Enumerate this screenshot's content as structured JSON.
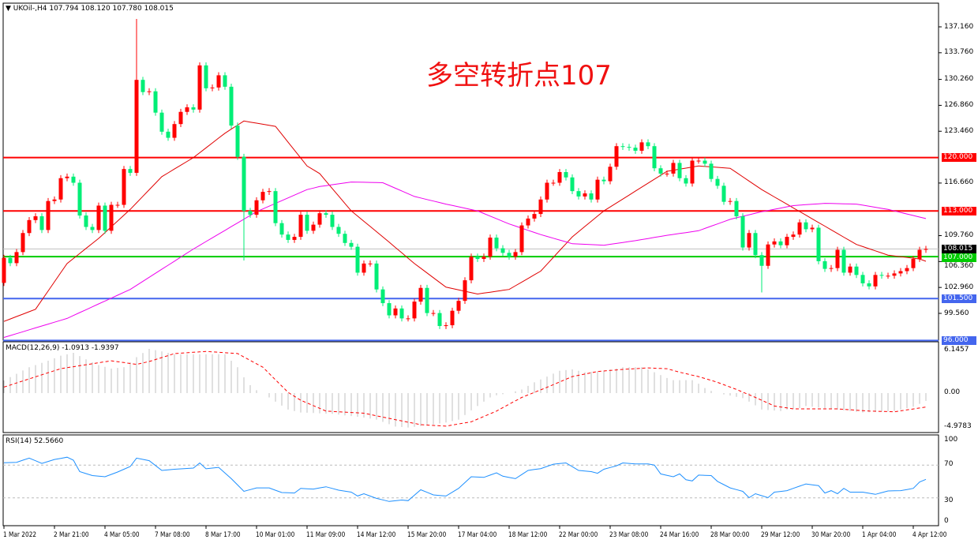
{
  "header": {
    "symbol": "UKOil-,H4",
    "open": "107.794",
    "high": "108.120",
    "low": "107.780",
    "close": "108.015"
  },
  "annotation": "多空转折点107",
  "colors": {
    "up": "#ff0000",
    "down": "#00ee76",
    "ma_fast": "#e00000",
    "ma_slow": "#ee00ee",
    "rsi": "#1e90ff",
    "macd_hist": "#c0c0c0",
    "macd_signal": "#ff0000"
  },
  "price_axis": [
    "137.160",
    "133.760",
    "130.260",
    "126.860",
    "123.460",
    "116.660",
    "109.760",
    "106.360",
    "102.960",
    "99.560"
  ],
  "levels": [
    {
      "label": "120.000",
      "price": 120.0,
      "color": "#ff0000"
    },
    {
      "label": "113.000",
      "price": 113.0,
      "color": "#ff0000"
    },
    {
      "label": "108.015",
      "price": 108.015,
      "color": "#c0c0c0",
      "tag_color": "#000000"
    },
    {
      "label": "107.000",
      "price": 107.0,
      "color": "#00cc00"
    },
    {
      "label": "101.500",
      "price": 101.5,
      "color": "#4466ee"
    },
    {
      "label": "96.000",
      "price": 96.0,
      "color": "#4466ee"
    }
  ],
  "time_axis": [
    "1 Mar 2022",
    "2 Mar 21:00",
    "4 Mar 05:00",
    "7 Mar 08:00",
    "8 Mar 17:00",
    "10 Mar 01:00",
    "11 Mar 09:00",
    "14 Mar 12:00",
    "15 Mar 20:00",
    "17 Mar 04:00",
    "18 Mar 12:00",
    "22 Mar 00:00",
    "23 Mar 08:00",
    "24 Mar 16:00",
    "28 Mar 00:00",
    "29 Mar 12:00",
    "30 Mar 20:00",
    "1 Apr 04:00",
    "4 Apr 12:00"
  ],
  "macd": {
    "title": "MACD(12,26,9) -1.0913 -1.9397",
    "axis": [
      "6.1457",
      "0.00",
      "-4.9783"
    ]
  },
  "rsi": {
    "title": "RSI(14) 52.5660",
    "axis": [
      "100",
      "70",
      "30",
      "0"
    ]
  },
  "chart_data": {
    "type": "candlestick",
    "first_open": 103.56,
    "closes": [
      106.84,
      106.15,
      107.6,
      110.1,
      111.8,
      112.3,
      110.5,
      114.3,
      114.5,
      117.3,
      117.5,
      116.7,
      112.4,
      110.9,
      110.5,
      113.7,
      110.4,
      113.8,
      113.8,
      118.5,
      118.0,
      130.2,
      128.6,
      128.7,
      125.9,
      123.4,
      122.6,
      124.4,
      126.0,
      126.6,
      126.3,
      132.1,
      129.1,
      129.2,
      130.8,
      129.3,
      124.2,
      120.1,
      113.0,
      112.5,
      114.4,
      115.5,
      115.6,
      111.4,
      109.9,
      109.2,
      109.6,
      112.5,
      110.4,
      111.2,
      112.7,
      112.5,
      110.9,
      110.0,
      108.8,
      108.3,
      104.9,
      106.1,
      106.1,
      102.7,
      100.9,
      99.3,
      100.2,
      98.9,
      98.9,
      101.1,
      102.9,
      99.6,
      99.6,
      97.9,
      98.0,
      99.9,
      101.2,
      103.9,
      107.0,
      106.7,
      107.0,
      109.5,
      108.1,
      107.5,
      107.0,
      107.6,
      111.1,
      112.0,
      112.6,
      114.5,
      116.7,
      116.7,
      118.1,
      117.4,
      115.6,
      114.9,
      115.3,
      114.5,
      117.1,
      116.9,
      118.8,
      121.5,
      121.4,
      121.3,
      120.9,
      122.0,
      121.5,
      118.6,
      117.9,
      117.9,
      119.3,
      117.3,
      116.6,
      119.6,
      119.6,
      119.2,
      117.2,
      116.3,
      114.2,
      114.3,
      112.3,
      108.2,
      110.1,
      107.2,
      105.8,
      108.6,
      109.0,
      108.5,
      109.6,
      109.9,
      111.5,
      110.6,
      110.8,
      106.4,
      105.4,
      105.5,
      107.9,
      104.9,
      105.7,
      104.6,
      103.5,
      103.1,
      104.6,
      104.5,
      104.5,
      104.8,
      105.1,
      105.5,
      106.7,
      107.9,
      108.015
    ],
    "notable_wicks": [
      {
        "index": 22,
        "high": 138.2
      },
      {
        "index": 39,
        "low": 106.5
      },
      {
        "index": 121,
        "low": 102.3
      }
    ],
    "y_range": [
      95.6,
      138.6
    ],
    "ma_fast": [
      [
        1,
        98.5
      ],
      [
        6,
        100.1
      ],
      [
        11,
        106.1
      ],
      [
        16,
        109.4
      ],
      [
        21,
        113.2
      ],
      [
        26,
        117.5
      ],
      [
        31,
        120.0
      ],
      [
        36,
        123.2
      ],
      [
        39,
        124.8
      ],
      [
        44,
        124.1
      ],
      [
        49,
        118.9
      ],
      [
        51,
        117.9
      ],
      [
        56,
        113.0
      ],
      [
        61,
        109.6
      ],
      [
        66,
        106.1
      ],
      [
        71,
        103.0
      ],
      [
        76,
        102.1
      ],
      [
        81,
        102.7
      ],
      [
        86,
        105.1
      ],
      [
        91,
        109.6
      ],
      [
        96,
        113.0
      ],
      [
        101,
        115.6
      ],
      [
        106,
        118.2
      ],
      [
        111,
        118.9
      ],
      [
        116,
        118.6
      ],
      [
        121,
        115.8
      ],
      [
        126,
        113.4
      ],
      [
        131,
        111.0
      ],
      [
        136,
        108.6
      ],
      [
        141,
        107.2
      ],
      [
        146,
        106.7
      ],
      [
        147,
        106.4
      ]
    ],
    "ma_slow": [
      [
        1,
        96.4
      ],
      [
        11,
        98.9
      ],
      [
        21,
        102.7
      ],
      [
        31,
        108.0
      ],
      [
        41,
        112.9
      ],
      [
        49,
        115.8
      ],
      [
        51,
        116.2
      ],
      [
        56,
        116.8
      ],
      [
        61,
        116.7
      ],
      [
        66,
        114.9
      ],
      [
        71,
        113.9
      ],
      [
        76,
        113.0
      ],
      [
        81,
        111.3
      ],
      [
        86,
        109.9
      ],
      [
        91,
        108.7
      ],
      [
        96,
        108.5
      ],
      [
        101,
        109.1
      ],
      [
        106,
        109.8
      ],
      [
        111,
        110.4
      ],
      [
        116,
        111.9
      ],
      [
        121,
        112.9
      ],
      [
        126,
        113.7
      ],
      [
        131,
        114.0
      ],
      [
        136,
        113.9
      ],
      [
        141,
        113.2
      ],
      [
        146,
        112.2
      ],
      [
        147,
        112.0
      ]
    ],
    "macd_hist": [
      [
        1,
        1.76
      ],
      [
        5,
        3.6
      ],
      [
        8,
        4.5
      ],
      [
        10,
        5.2
      ],
      [
        12,
        5.6
      ],
      [
        14,
        4.7
      ],
      [
        16,
        3.9
      ],
      [
        18,
        3.4
      ],
      [
        20,
        3.6
      ],
      [
        22,
        5.0
      ],
      [
        24,
        6.15
      ],
      [
        26,
        5.8
      ],
      [
        28,
        5.4
      ],
      [
        36,
        5.4
      ],
      [
        38,
        3.6
      ],
      [
        39,
        2.2
      ],
      [
        40,
        1.1
      ],
      [
        41,
        0.4
      ],
      [
        42,
        0
      ],
      [
        44,
        -1.2
      ],
      [
        46,
        -2.3
      ],
      [
        48,
        -2.7
      ],
      [
        53,
        -2.9
      ],
      [
        58,
        -3.4
      ],
      [
        60,
        -3.7
      ],
      [
        63,
        -4.65
      ],
      [
        65,
        -4.8
      ],
      [
        68,
        -4.5
      ],
      [
        71,
        -4.1
      ],
      [
        73,
        -3.7
      ],
      [
        75,
        -2.4
      ],
      [
        76,
        -1.8
      ],
      [
        77,
        -1.2
      ],
      [
        78,
        -0.6
      ],
      [
        79,
        -0.3
      ],
      [
        81,
        0
      ],
      [
        83,
        0.5
      ],
      [
        84,
        1.0
      ],
      [
        85,
        1.5
      ],
      [
        86,
        1.9
      ],
      [
        87,
        2.3
      ],
      [
        88,
        2.7
      ],
      [
        89,
        3.1
      ],
      [
        91,
        3.3
      ],
      [
        93,
        2.9
      ],
      [
        96,
        3.1
      ],
      [
        99,
        3.6
      ],
      [
        102,
        3.6
      ],
      [
        103,
        3.3
      ],
      [
        104,
        2.9
      ],
      [
        105,
        2.5
      ],
      [
        106,
        2.1
      ],
      [
        107,
        1.8
      ],
      [
        110,
        1.8
      ],
      [
        111,
        1.3
      ],
      [
        112,
        0.7
      ],
      [
        113,
        0.3
      ],
      [
        114,
        0
      ],
      [
        118,
        -0.7
      ],
      [
        119,
        -1.2
      ],
      [
        120,
        -1.7
      ],
      [
        121,
        -2.3
      ],
      [
        124,
        -2.5
      ],
      [
        125,
        -2.3
      ],
      [
        127,
        -2.1
      ],
      [
        128,
        -1.8
      ],
      [
        131,
        -2.1
      ],
      [
        133,
        -2.3
      ],
      [
        135,
        -2.5
      ],
      [
        137,
        -2.7
      ],
      [
        140,
        -2.6
      ],
      [
        142,
        -2.5
      ],
      [
        144,
        -2.1
      ],
      [
        145,
        -1.9
      ],
      [
        146,
        -1.5
      ],
      [
        147,
        -1.09
      ]
    ],
    "macd_signal": [
      [
        1,
        0.84
      ],
      [
        10,
        3.4
      ],
      [
        18,
        4.5
      ],
      [
        22,
        4.0
      ],
      [
        24,
        4.4
      ],
      [
        28,
        5.5
      ],
      [
        33,
        5.8
      ],
      [
        38,
        5.5
      ],
      [
        42,
        3.6
      ],
      [
        46,
        0.1
      ],
      [
        48,
        -1.0
      ],
      [
        52,
        -2.5
      ],
      [
        58,
        -2.8
      ],
      [
        63,
        -3.7
      ],
      [
        67,
        -4.4
      ],
      [
        71,
        -4.6
      ],
      [
        75,
        -4.0
      ],
      [
        79,
        -2.5
      ],
      [
        83,
        -0.6
      ],
      [
        87,
        0.8
      ],
      [
        91,
        2.3
      ],
      [
        95,
        3.0
      ],
      [
        99,
        3.3
      ],
      [
        103,
        3.5
      ],
      [
        106,
        3.4
      ],
      [
        108,
        2.9
      ],
      [
        111,
        2.3
      ],
      [
        114,
        1.5
      ],
      [
        117,
        0.5
      ],
      [
        120,
        -0.6
      ],
      [
        123,
        -1.8
      ],
      [
        126,
        -2.2
      ],
      [
        133,
        -2.2
      ],
      [
        138,
        -2.5
      ],
      [
        142,
        -2.6
      ],
      [
        147,
        -1.94
      ]
    ],
    "rsi": [
      [
        1,
        72.8
      ],
      [
        3,
        73.4
      ],
      [
        5,
        78.5
      ],
      [
        7,
        72
      ],
      [
        9,
        76.8
      ],
      [
        11,
        79.6
      ],
      [
        12,
        76
      ],
      [
        13,
        62
      ],
      [
        15,
        57.2
      ],
      [
        17,
        55.8
      ],
      [
        19,
        61.5
      ],
      [
        21,
        68.3
      ],
      [
        22,
        78.5
      ],
      [
        24,
        75.4
      ],
      [
        26,
        63.5
      ],
      [
        28,
        64.9
      ],
      [
        31,
        66.3
      ],
      [
        32,
        72.6
      ],
      [
        33,
        65.5
      ],
      [
        35,
        67.2
      ],
      [
        37,
        53.5
      ],
      [
        39,
        38
      ],
      [
        41,
        42.2
      ],
      [
        43,
        42.2
      ],
      [
        45,
        36.5
      ],
      [
        47,
        36
      ],
      [
        48,
        41.6
      ],
      [
        50,
        40.8
      ],
      [
        52,
        43.6
      ],
      [
        54,
        39.4
      ],
      [
        56,
        37
      ],
      [
        57,
        32.3
      ],
      [
        58,
        35.1
      ],
      [
        60,
        29.4
      ],
      [
        62,
        25.7
      ],
      [
        64,
        27.4
      ],
      [
        65,
        26.6
      ],
      [
        67,
        39.9
      ],
      [
        69,
        33.7
      ],
      [
        71,
        32.3
      ],
      [
        73,
        41.6
      ],
      [
        75,
        55.8
      ],
      [
        77,
        55
      ],
      [
        79,
        60.6
      ],
      [
        80,
        56.4
      ],
      [
        82,
        53.5
      ],
      [
        84,
        63.5
      ],
      [
        86,
        65.7
      ],
      [
        88,
        71.1
      ],
      [
        90,
        72.6
      ],
      [
        92,
        63.5
      ],
      [
        94,
        62
      ],
      [
        95,
        60
      ],
      [
        96,
        64.9
      ],
      [
        98,
        69.1
      ],
      [
        99,
        72.6
      ],
      [
        101,
        71.4
      ],
      [
        103,
        71.4
      ],
      [
        104,
        70
      ],
      [
        105,
        59.2
      ],
      [
        107,
        55.8
      ],
      [
        108,
        59.2
      ],
      [
        109,
        52.1
      ],
      [
        110,
        50.7
      ],
      [
        111,
        57.8
      ],
      [
        113,
        57.2
      ],
      [
        114,
        50.1
      ],
      [
        116,
        42.2
      ],
      [
        118,
        38
      ],
      [
        119,
        30.3
      ],
      [
        120,
        35.1
      ],
      [
        122,
        30.3
      ],
      [
        123,
        37
      ],
      [
        125,
        38.8
      ],
      [
        126,
        41.6
      ],
      [
        128,
        47
      ],
      [
        130,
        45
      ],
      [
        131,
        36
      ],
      [
        132,
        38.8
      ],
      [
        133,
        35.1
      ],
      [
        134,
        41.6
      ],
      [
        135,
        37
      ],
      [
        137,
        37
      ],
      [
        139,
        34.3
      ],
      [
        141,
        38.5
      ],
      [
        143,
        38.8
      ],
      [
        145,
        41.6
      ],
      [
        146,
        49.3
      ],
      [
        147,
        52.57
      ]
    ],
    "rsi_levels": [
      70,
      30
    ],
    "grid": false
  }
}
